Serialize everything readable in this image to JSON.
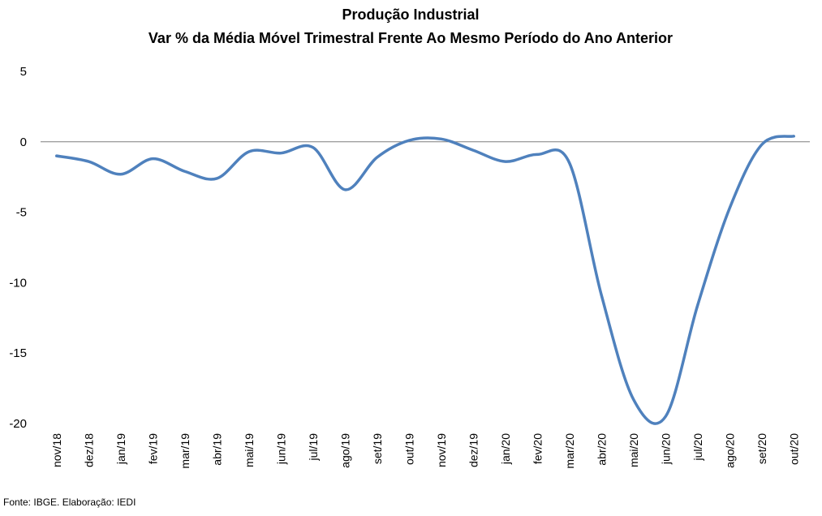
{
  "chart_data": {
    "type": "line",
    "title": "Produção Industrial",
    "subtitle": "Var % da Média Móvel Trimestral Frente Ao Mesmo Período do Ano Anterior",
    "xlabel": "",
    "ylabel": "",
    "categories": [
      "nov/18",
      "dez/18",
      "jan/19",
      "fev/19",
      "mar/19",
      "abr/19",
      "mai/19",
      "jun/19",
      "jul/19",
      "ago/19",
      "set/19",
      "out/19",
      "nov/19",
      "dez/19",
      "jan/20",
      "fev/20",
      "mar/20",
      "abr/20",
      "mai/20",
      "jun/20",
      "jul/20",
      "ago/20",
      "set/20",
      "out/20"
    ],
    "series": [
      {
        "name": "",
        "color": "#4F81BD",
        "values": [
          -1.0,
          -1.4,
          -2.3,
          -1.2,
          -2.1,
          -2.6,
          -0.7,
          -0.8,
          -0.4,
          -3.4,
          -1.1,
          0.1,
          0.2,
          -0.6,
          -1.4,
          -0.9,
          -1.5,
          -10.9,
          -18.3,
          -19.5,
          -11.6,
          -4.7,
          -0.2,
          0.4
        ]
      }
    ],
    "ylim": [
      -20,
      5
    ],
    "yticks": [
      5,
      0,
      -5,
      -10,
      -15,
      -20
    ],
    "grid": false,
    "zero_line": true,
    "legend": "none"
  },
  "footer": {
    "source": "Fonte: IBGE. Elaboração: IEDI"
  }
}
